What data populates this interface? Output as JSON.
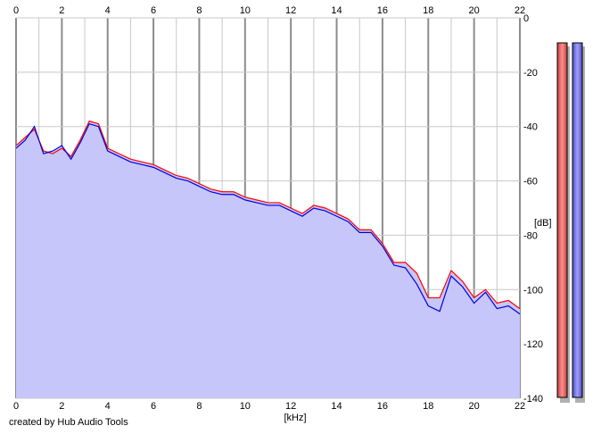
{
  "credit": "created by Hub Audio Tools",
  "chart_data": {
    "type": "line",
    "xlabel": "[kHz]",
    "ylabel": "[dB]",
    "xlim": [
      0,
      22
    ],
    "ylim": [
      -140,
      0
    ],
    "x_ticks": [
      "0",
      "2",
      "4",
      "6",
      "8",
      "10",
      "12",
      "14",
      "16",
      "18",
      "20",
      "22"
    ],
    "y_ticks": [
      "0",
      "-20",
      "-40",
      "-60",
      "-80",
      "-100",
      "-120",
      "-140"
    ],
    "grid": true,
    "background_fill_color": "#c6c6fa",
    "series": [
      {
        "color": "#ff0000",
        "x": [
          0,
          0.4,
          0.8,
          1.2,
          1.6,
          2,
          2.4,
          2.8,
          3.2,
          3.6,
          4,
          4.5,
          5,
          5.5,
          6,
          6.5,
          7,
          7.5,
          8,
          8.5,
          9,
          9.5,
          10,
          10.5,
          11,
          11.5,
          12,
          12.5,
          13,
          13.5,
          14,
          14.5,
          15,
          15.5,
          16,
          16.5,
          17,
          17.5,
          18,
          18.5,
          19,
          19.5,
          20,
          20.5,
          21,
          21.5,
          22
        ],
        "y": [
          -47,
          -44,
          -41,
          -49,
          -50,
          -48,
          -51,
          -45,
          -38,
          -39,
          -48,
          -50,
          -52,
          -53,
          -54,
          -56,
          -58,
          -59,
          -61,
          -63,
          -64,
          -64,
          -66,
          -67,
          -68,
          -68,
          -70,
          -72,
          -69,
          -70,
          -72,
          -74,
          -78,
          -78,
          -83,
          -90,
          -90,
          -94,
          -103,
          -103,
          -93,
          -97,
          -103,
          -100,
          -105,
          -104,
          -107
        ]
      },
      {
        "color": "#0000dd",
        "x": [
          0,
          0.4,
          0.8,
          1.2,
          1.6,
          2,
          2.4,
          2.8,
          3.2,
          3.6,
          4,
          4.5,
          5,
          5.5,
          6,
          6.5,
          7,
          7.5,
          8,
          8.5,
          9,
          9.5,
          10,
          10.5,
          11,
          11.5,
          12,
          12.5,
          13,
          13.5,
          14,
          14.5,
          15,
          15.5,
          16,
          16.5,
          17,
          17.5,
          18,
          18.5,
          19,
          19.5,
          20,
          20.5,
          21,
          21.5,
          22
        ],
        "y": [
          -48,
          -45,
          -40,
          -50,
          -49,
          -47,
          -52,
          -46,
          -39,
          -40,
          -49,
          -51,
          -53,
          -54,
          -55,
          -57,
          -59,
          -60,
          -62,
          -64,
          -65,
          -65,
          -67,
          -68,
          -69,
          -69,
          -71,
          -73,
          -70,
          -71,
          -73,
          -75,
          -79,
          -79,
          -84,
          -91,
          -92,
          -98,
          -106,
          -108,
          -95,
          -99,
          -105,
          -101,
          -107,
          -106,
          -109
        ]
      }
    ]
  }
}
